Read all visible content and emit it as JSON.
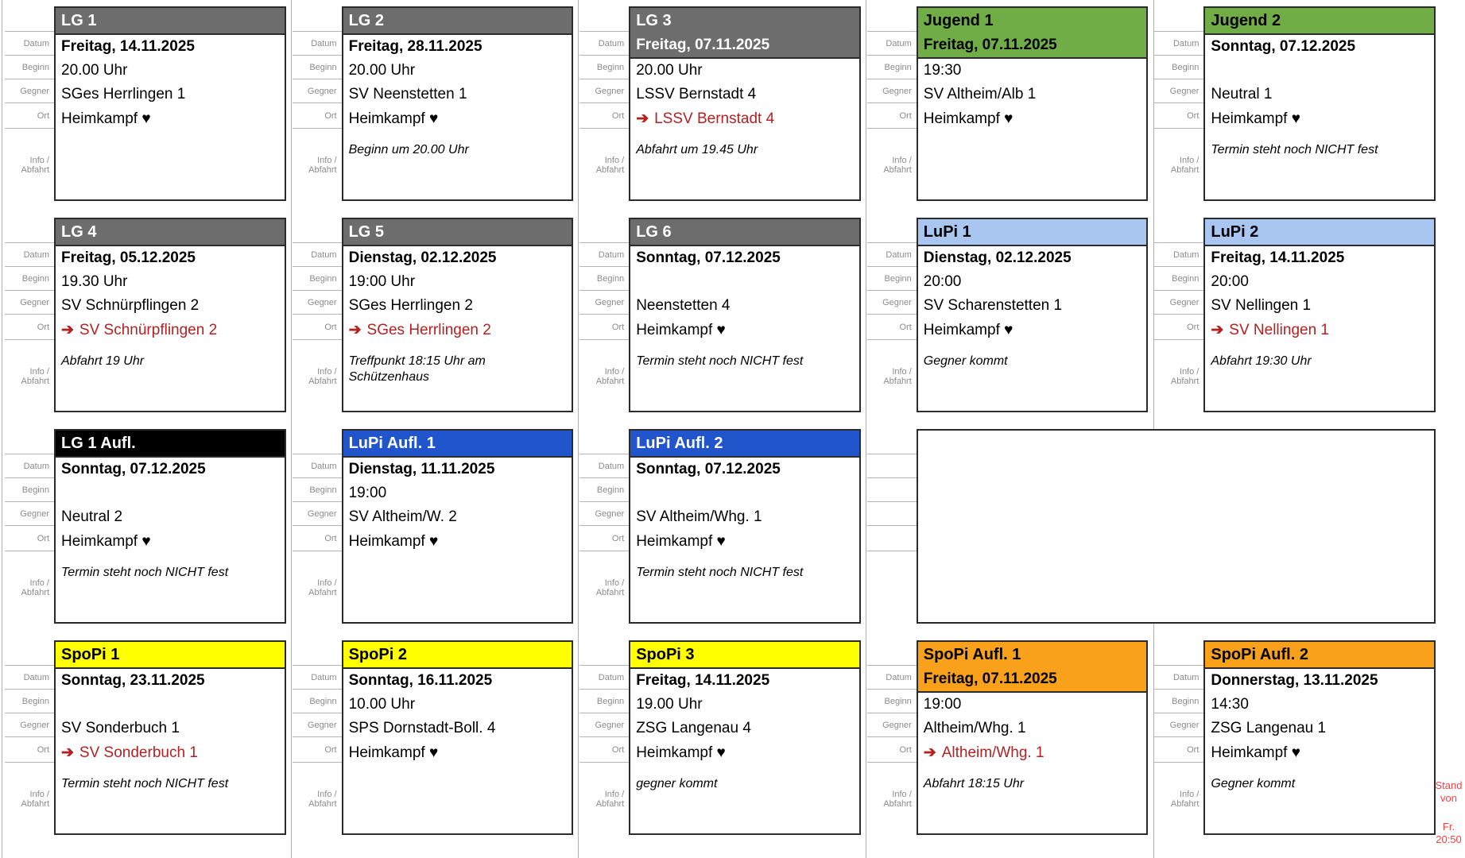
{
  "row_labels": {
    "datum": "Datum",
    "beginn": "Beginn",
    "gegner": "Gegner",
    "ort": "Ort",
    "info_line1": "Info /",
    "info_line2": "Abfahrt"
  },
  "icons": {
    "away_arrow": "➔",
    "home_heart": "♥"
  },
  "colors": {
    "header_gray": "#6d6d6d",
    "header_black": "#000000",
    "header_green": "#70ad47",
    "header_lightblue": "#a8c6f0",
    "header_blue": "#2155cb",
    "header_yellow": "#ffff00",
    "header_orange": "#f9a11b",
    "away_red": "#b22222",
    "note_red": "#fb4040",
    "label_gray": "#8c8c8c"
  },
  "header_styles": {
    "gray": {
      "bg": "#6d6d6d",
      "fg": "#ffffff"
    },
    "black": {
      "bg": "#000000",
      "fg": "#ffffff"
    },
    "green": {
      "bg": "#70ad47",
      "fg": "#000000"
    },
    "lightblue": {
      "bg": "#a8c6f0",
      "fg": "#000000"
    },
    "blue": {
      "bg": "#2155cb",
      "fg": "#ffffff"
    },
    "yellow": {
      "bg": "#ffff00",
      "fg": "#000000"
    },
    "orange": {
      "bg": "#f9a11b",
      "fg": "#000000"
    }
  },
  "slots": [
    {
      "title": "LG 1",
      "style": "gray",
      "header_rows": 1,
      "datum": "Freitag, 14.11.2025",
      "beginn": "20.00 Uhr",
      "gegner": "SGes Herrlingen 1",
      "ort": "Heimkampf ♥",
      "away": false,
      "info": ""
    },
    {
      "title": "LG 2",
      "style": "gray",
      "header_rows": 1,
      "datum": "Freitag, 28.11.2025",
      "beginn": "20.00 Uhr",
      "gegner": "SV Neenstetten 1",
      "ort": "Heimkampf ♥",
      "away": false,
      "info": "Beginn um 20.00 Uhr"
    },
    {
      "title": "LG 3",
      "style": "gray",
      "header_rows": 2,
      "datum": "Freitag, 07.11.2025",
      "beginn": "20.00 Uhr",
      "gegner": "LSSV Bernstadt 4",
      "ort": "LSSV Bernstadt 4",
      "away": true,
      "info": "Abfahrt um 19.45 Uhr"
    },
    {
      "title": "Jugend 1",
      "style": "green",
      "header_rows": 2,
      "datum": "Freitag, 07.11.2025",
      "beginn": "19:30",
      "gegner": "SV Altheim/Alb 1",
      "ort": "Heimkampf ♥",
      "away": false,
      "info": ""
    },
    {
      "title": "Jugend 2",
      "style": "green",
      "header_rows": 1,
      "datum": "Sonntag, 07.12.2025",
      "beginn": "",
      "gegner": "Neutral 1",
      "ort": "Heimkampf ♥",
      "away": false,
      "info": "Termin steht noch NICHT fest"
    },
    {
      "title": "LG 4",
      "style": "gray",
      "header_rows": 1,
      "datum": "Freitag, 05.12.2025",
      "beginn": "19.30 Uhr",
      "gegner": "SV Schnürpflingen 2",
      "ort": "SV Schnürpflingen 2",
      "away": true,
      "info": "Abfahrt 19 Uhr"
    },
    {
      "title": "LG 5",
      "style": "gray",
      "header_rows": 1,
      "datum": "Dienstag, 02.12.2025",
      "beginn": "19:00 Uhr",
      "gegner": "SGes Herrlingen 2",
      "ort": "SGes Herrlingen 2",
      "away": true,
      "info": "Treffpunkt 18:15 Uhr am Schützenhaus"
    },
    {
      "title": "LG 6",
      "style": "gray",
      "header_rows": 1,
      "datum": "Sonntag, 07.12.2025",
      "beginn": "",
      "gegner": "Neenstetten 4",
      "ort": "Heimkampf ♥",
      "away": false,
      "info": "Termin steht noch NICHT fest"
    },
    {
      "title": "LuPi 1",
      "style": "lightblue",
      "header_rows": 1,
      "datum": "Dienstag, 02.12.2025",
      "beginn": "20:00",
      "gegner": "SV Scharenstetten 1",
      "ort": "Heimkampf ♥",
      "away": false,
      "info": "Gegner kommt"
    },
    {
      "title": "LuPi 2",
      "style": "lightblue",
      "header_rows": 1,
      "datum": "Freitag, 14.11.2025",
      "beginn": "20:00",
      "gegner": "SV Nellingen 1",
      "ort": "SV Nellingen 1",
      "away": true,
      "info": "Abfahrt 19:30 Uhr"
    },
    {
      "title": "LG 1 Aufl.",
      "style": "black",
      "header_rows": 1,
      "datum": "Sonntag, 07.12.2025",
      "beginn": "",
      "gegner": "Neutral 2",
      "ort": "Heimkampf ♥",
      "away": false,
      "info": "Termin steht noch NICHT fest"
    },
    {
      "title": "LuPi Aufl. 1",
      "style": "blue",
      "header_rows": 1,
      "datum": "Dienstag, 11.11.2025",
      "beginn": "19:00",
      "gegner": "SV Altheim/W. 2",
      "ort": "Heimkampf ♥",
      "away": false,
      "info": ""
    },
    {
      "title": "LuPi Aufl. 2",
      "style": "blue",
      "header_rows": 1,
      "datum": "Sonntag, 07.12.2025",
      "beginn": "",
      "gegner": "SV Altheim/Whg. 1",
      "ort": "Heimkampf ♥",
      "away": false,
      "info": "Termin steht noch NICHT fest"
    },
    {
      "wide": true
    },
    {
      "title": "SpoPi 1",
      "style": "yellow",
      "header_rows": 1,
      "datum": "Sonntag, 23.11.2025",
      "beginn": "",
      "gegner": "SV Sonderbuch 1",
      "ort": "SV Sonderbuch 1",
      "away": true,
      "info": "Termin steht noch NICHT fest"
    },
    {
      "title": "SpoPi 2",
      "style": "yellow",
      "header_rows": 1,
      "datum": "Sonntag, 16.11.2025",
      "beginn": "10.00 Uhr",
      "gegner": "SPS Dornstadt-Boll. 4",
      "ort": "Heimkampf ♥",
      "away": false,
      "info": ""
    },
    {
      "title": "SpoPi 3",
      "style": "yellow",
      "header_rows": 1,
      "datum": "Freitag, 14.11.2025",
      "beginn": "19.00 Uhr",
      "gegner": "ZSG Langenau 4",
      "ort": "Heimkampf ♥",
      "away": false,
      "info": "gegner kommt"
    },
    {
      "title": "SpoPi Aufl. 1",
      "style": "orange",
      "header_rows": 2,
      "datum": "Freitag, 07.11.2025",
      "beginn": "19:00",
      "gegner": "Altheim/Whg. 1",
      "ort": "Altheim/Whg. 1",
      "away": true,
      "info": "Abfahrt 18:15 Uhr"
    },
    {
      "title": "SpoPi Aufl. 2",
      "style": "orange",
      "header_rows": 1,
      "datum": "Donnerstag, 13.11.2025",
      "beginn": "14:30",
      "gegner": "ZSG Langenau 1",
      "ort": "Heimkampf ♥",
      "away": false,
      "info": "Gegner kommt"
    }
  ],
  "stand_note": {
    "text1": "Stand von",
    "text2": "Fr. 20:50"
  }
}
